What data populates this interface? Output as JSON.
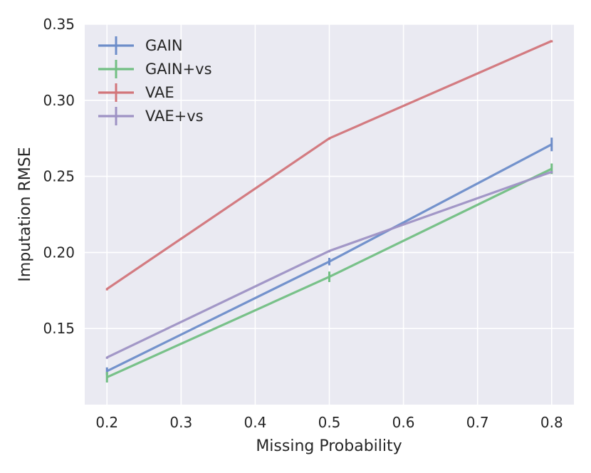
{
  "chart_data": {
    "type": "line",
    "title": "",
    "xlabel": "Missing Probability",
    "ylabel": "Imputation RMSE",
    "x": [
      0.2,
      0.5,
      0.8
    ],
    "xlim": [
      0.17,
      0.83
    ],
    "ylim": [
      0.1,
      0.35
    ],
    "xticks": [
      0.2,
      0.3,
      0.4,
      0.5,
      0.6,
      0.7,
      0.8
    ],
    "xtick_labels": [
      "0.2",
      "0.3",
      "0.4",
      "0.5",
      "0.6",
      "0.7",
      "0.8"
    ],
    "yticks": [
      0.15,
      0.2,
      0.25,
      0.3,
      0.35
    ],
    "ytick_labels": [
      "0.15",
      "0.20",
      "0.25",
      "0.30",
      "0.35"
    ],
    "grid": true,
    "legend_position": "top-left",
    "series": [
      {
        "name": "GAIN",
        "color": "#6d8dc9",
        "values": [
          0.122,
          0.194,
          0.271
        ],
        "errors": [
          0.002,
          0.002,
          0.004
        ]
      },
      {
        "name": "GAIN+vs",
        "color": "#72bf83",
        "values": [
          0.118,
          0.184,
          0.255
        ],
        "errors": [
          0.003,
          0.003,
          0.003
        ]
      },
      {
        "name": "VAE",
        "color": "#d2757a",
        "values": [
          0.176,
          0.275,
          0.339
        ],
        "errors": [
          0.0,
          0.0,
          0.0
        ]
      },
      {
        "name": "VAE+vs",
        "color": "#9e92c4",
        "values": [
          0.131,
          0.201,
          0.253
        ],
        "errors": [
          0.0,
          0.0,
          0.0
        ]
      }
    ]
  }
}
